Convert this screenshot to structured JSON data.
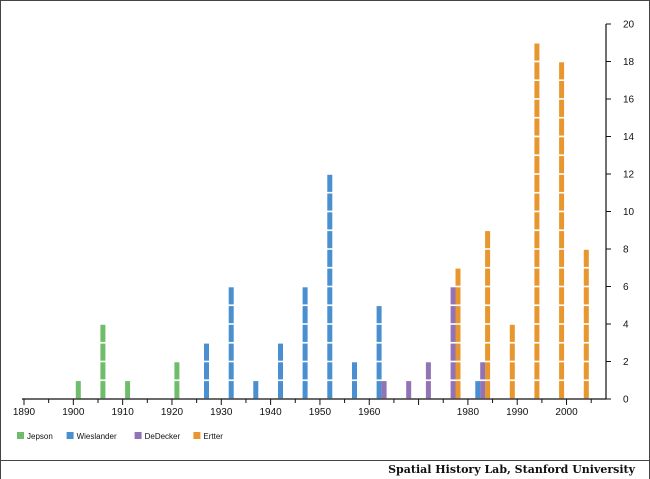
{
  "credit": "Spatial History Lab, Stanford University",
  "colors": {
    "Jepson": "#6dbd6a",
    "Wieslander": "#4a8fcf",
    "DeDecker": "#9273b6",
    "Ertter": "#e8962e",
    "axis": "#111111"
  },
  "chart_data": {
    "type": "bar",
    "title": "",
    "xlabel": "",
    "ylabel": "",
    "xlim": [
      1890,
      2008
    ],
    "ylim": [
      0,
      20
    ],
    "x_ticks": [
      1890,
      1900,
      1910,
      1920,
      1930,
      1940,
      1950,
      1960,
      1980,
      1990,
      2000
    ],
    "y_ticks": [
      0,
      2,
      4,
      6,
      8,
      10,
      12,
      14,
      16,
      18,
      20
    ],
    "y_axis_side": "right",
    "legend": {
      "position": "bottom-left",
      "entries": [
        "Jepson",
        "Wieslander",
        "DeDecker",
        "Ertter"
      ]
    },
    "series": [
      {
        "name": "Jepson",
        "points": [
          {
            "x": 1901,
            "y": 1
          },
          {
            "x": 1906,
            "y": 4
          },
          {
            "x": 1911,
            "y": 1
          },
          {
            "x": 1921,
            "y": 2
          }
        ]
      },
      {
        "name": "Wieslander",
        "points": [
          {
            "x": 1927,
            "y": 3
          },
          {
            "x": 1932,
            "y": 6
          },
          {
            "x": 1937,
            "y": 1
          },
          {
            "x": 1942,
            "y": 3
          },
          {
            "x": 1947,
            "y": 6
          },
          {
            "x": 1952,
            "y": 12
          },
          {
            "x": 1957,
            "y": 2
          },
          {
            "x": 1962,
            "y": 5
          },
          {
            "x": 1982,
            "y": 1
          }
        ]
      },
      {
        "name": "DeDecker",
        "points": [
          {
            "x": 1963,
            "y": 1
          },
          {
            "x": 1968,
            "y": 1
          },
          {
            "x": 1972,
            "y": 2
          },
          {
            "x": 1977,
            "y": 6
          },
          {
            "x": 1983,
            "y": 2
          }
        ]
      },
      {
        "name": "Ertter",
        "points": [
          {
            "x": 1978,
            "y": 7
          },
          {
            "x": 1984,
            "y": 9
          },
          {
            "x": 1989,
            "y": 4
          },
          {
            "x": 1994,
            "y": 19
          },
          {
            "x": 1999,
            "y": 18
          },
          {
            "x": 2004,
            "y": 8
          }
        ]
      }
    ]
  }
}
